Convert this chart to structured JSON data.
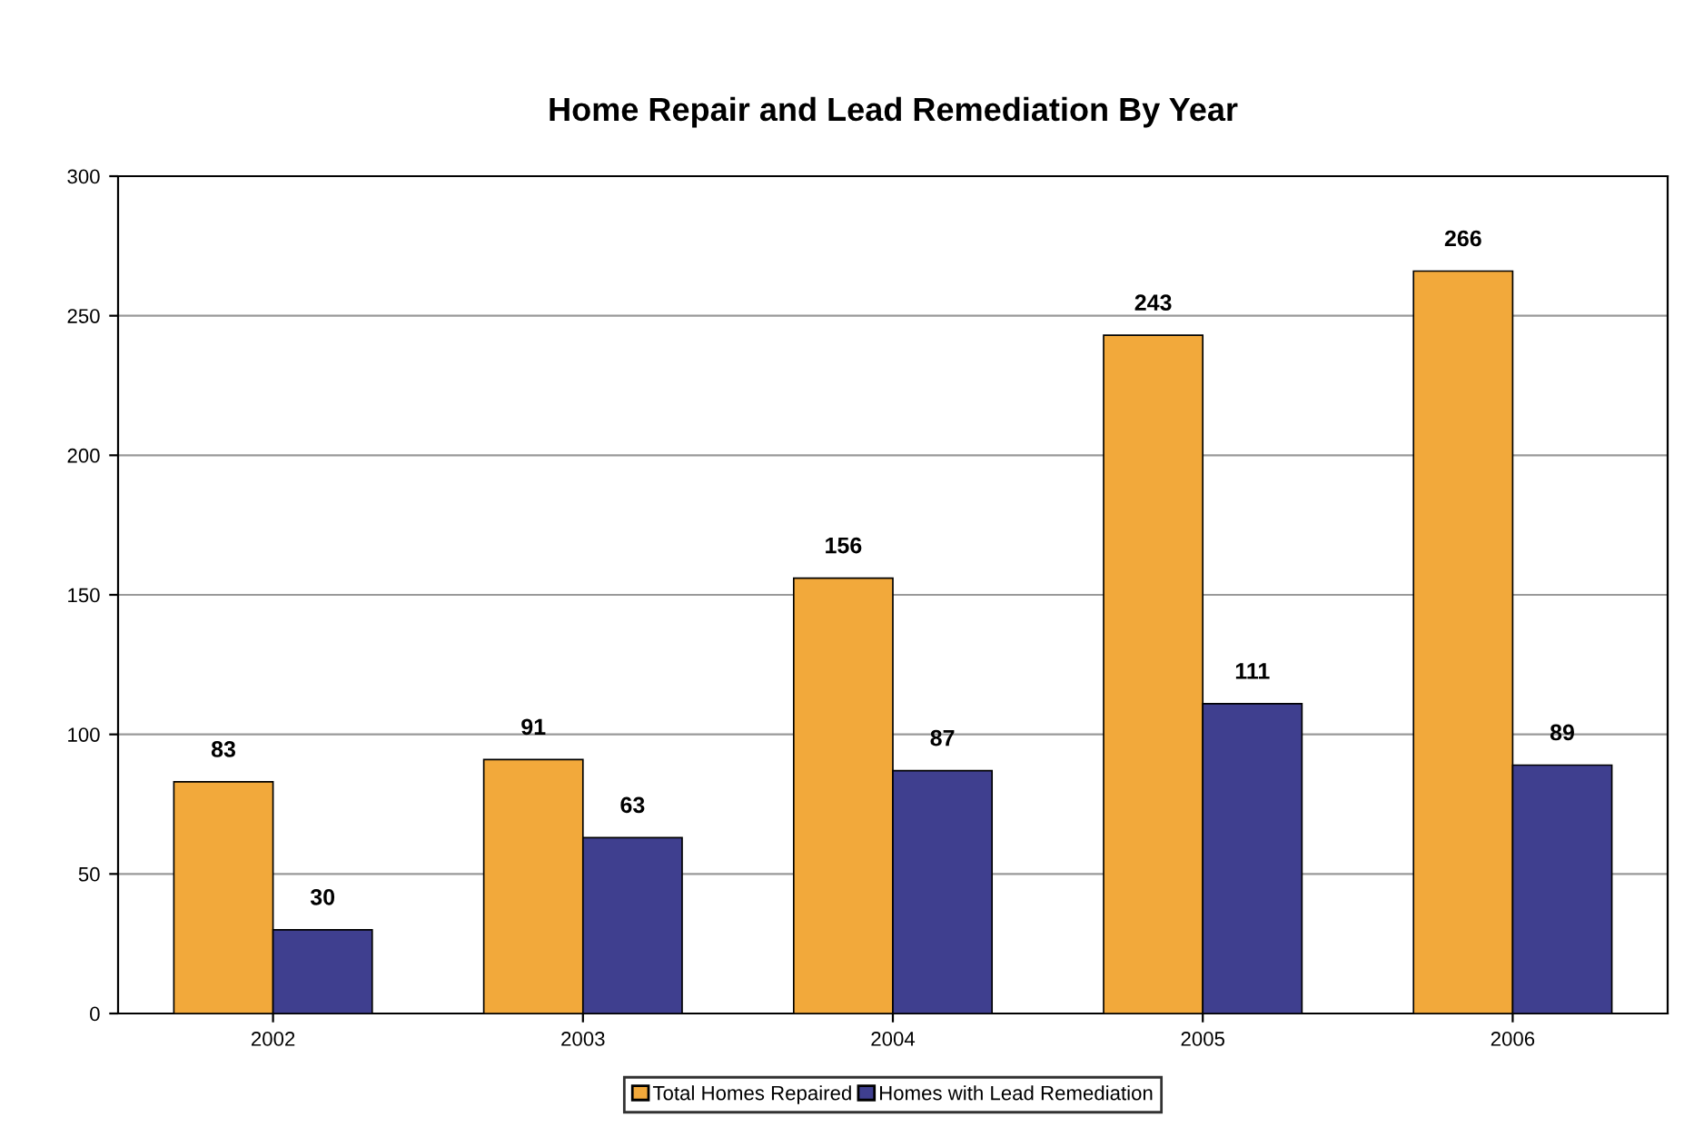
{
  "chart_data": {
    "type": "bar",
    "title": "Home Repair and Lead Remediation By Year",
    "categories": [
      "2002",
      "2003",
      "2004",
      "2005",
      "2006"
    ],
    "series": [
      {
        "name": "Total Homes Repaired",
        "color": "#f2a93b",
        "values": [
          83,
          91,
          156,
          243,
          266
        ]
      },
      {
        "name": "Homes with Lead Remediation",
        "color": "#3f3f8f",
        "values": [
          30,
          63,
          87,
          111,
          89
        ]
      }
    ],
    "ylim": [
      0,
      300
    ],
    "yticks": [
      0,
      50,
      100,
      150,
      200,
      250,
      300
    ],
    "grid": "y",
    "legend": "bottom",
    "data_labels": true
  }
}
